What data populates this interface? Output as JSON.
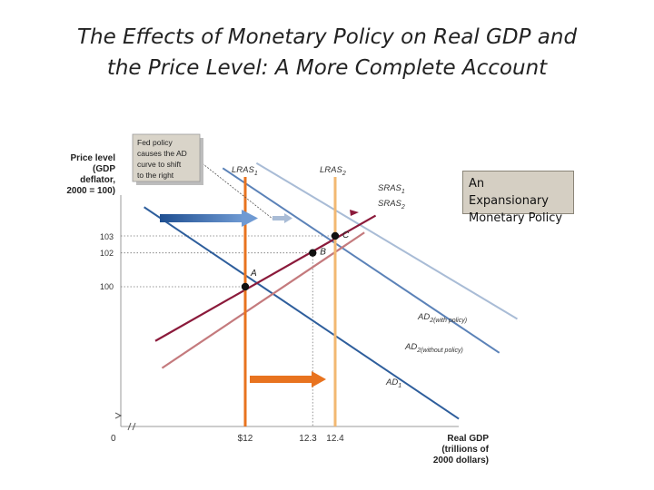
{
  "slide": {
    "title_line1": "The Effects of Monetary Policy on Real GDP and",
    "title_line2": "the Price Level:  A More Complete Account"
  },
  "note_box": {
    "line1": "An Expansionary",
    "line2": "Monetary Policy"
  },
  "callout": {
    "line1": "Fed policy",
    "line2": "causes the AD",
    "line3": "curve to shift",
    "line4": "to the right"
  },
  "colors": {
    "lras1": "#e8731f",
    "lras2": "#f2b872",
    "sras1": "#8b1a3b",
    "sras2": "#c47a7d",
    "ad1": "#2e5e9c",
    "ad2_with": "#a9bcd6",
    "ad2_without": "#5b82b8",
    "arrow_blue": "#2f63a8",
    "arrow_orange": "#e8731f"
  },
  "chart_data": {
    "type": "line",
    "title": "The Effects of Monetary Policy on Real GDP and the Price Level",
    "ylabel": "Price level (GDP deflator, 2000 = 100)",
    "ylabel_lines": [
      "Price level",
      "(GDP",
      "deflator,",
      "2000 = 100)"
    ],
    "xlabel": "Real GDP (trillions of 2000 dollars)",
    "xlabel_lines": [
      "Real GDP",
      "(trillions of",
      "2000 dollars)"
    ],
    "origin_label": "0",
    "x_ticks": [
      "$12",
      "12.3",
      "12.4"
    ],
    "y_ticks": [
      "103",
      "102",
      "100"
    ],
    "series": [
      {
        "name": "LRAS1",
        "label": "LRAS",
        "sub": "1",
        "type": "vertical",
        "x": 12.0
      },
      {
        "name": "LRAS2",
        "label": "LRAS",
        "sub": "2",
        "type": "vertical",
        "x": 12.4
      },
      {
        "name": "SRAS1",
        "label": "SRAS",
        "sub": "1",
        "type": "upward",
        "points": [
          [
            11.6,
            96.8
          ],
          [
            12.58,
            104.2
          ]
        ]
      },
      {
        "name": "SRAS2",
        "label": "SRAS",
        "sub": "2",
        "type": "upward",
        "points": [
          [
            11.63,
            95.2
          ],
          [
            12.53,
            103.2
          ]
        ]
      },
      {
        "name": "AD1",
        "label": "AD",
        "sub": "1",
        "type": "downward",
        "points": [
          [
            11.55,
            104.7
          ],
          [
            12.95,
            92.2
          ]
        ]
      },
      {
        "name": "AD2 (without policy)",
        "label": "AD",
        "sub": "2(without policy)",
        "type": "downward",
        "points": [
          [
            11.9,
            107.0
          ],
          [
            13.13,
            96.1
          ]
        ]
      },
      {
        "name": "AD2 (with policy)",
        "label": "AD",
        "sub": "2(with policy)",
        "type": "downward",
        "points": [
          [
            12.05,
            107.3
          ],
          [
            13.21,
            98.1
          ]
        ]
      }
    ],
    "points": [
      {
        "label": "A",
        "x": 12.0,
        "y": 100
      },
      {
        "label": "B",
        "x": 12.3,
        "y": 102
      },
      {
        "label": "C",
        "x": 12.4,
        "y": 103
      }
    ]
  }
}
